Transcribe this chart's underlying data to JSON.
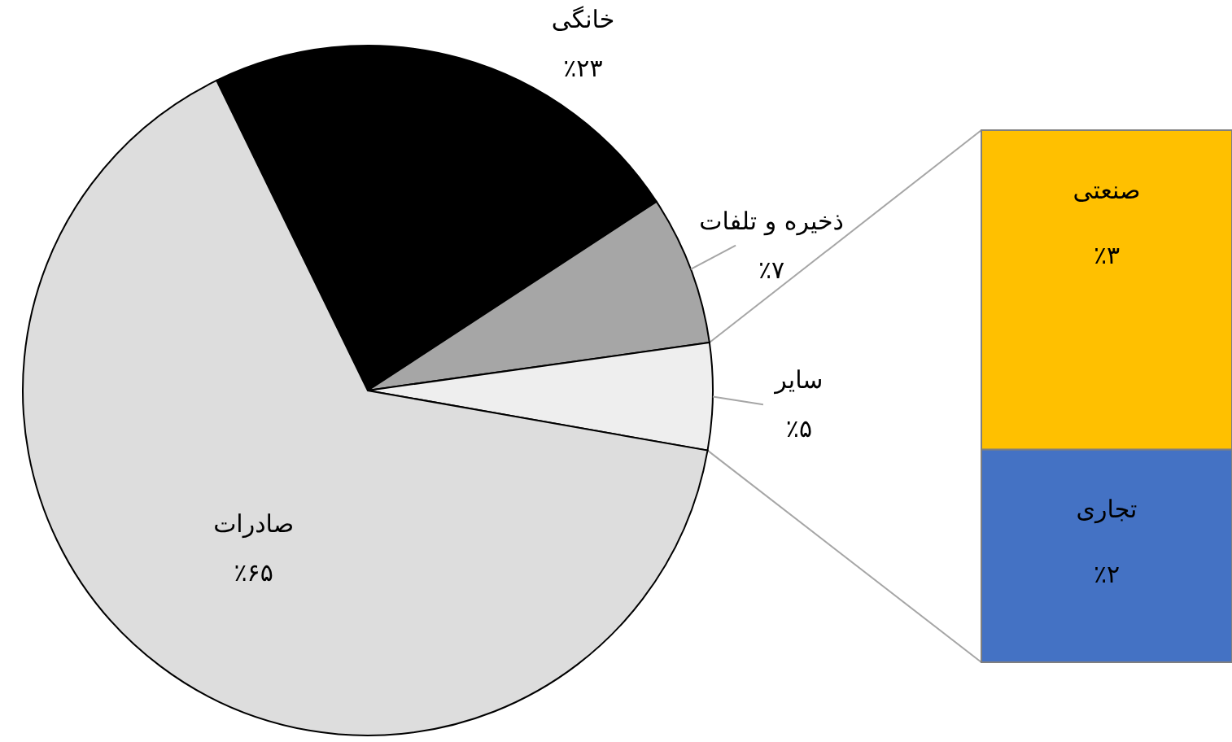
{
  "chart_data": [
    {
      "type": "pie",
      "categories": [
        "خانگی",
        "ذخیره و تلفات",
        "سایر",
        "صادرات"
      ],
      "values": [
        23,
        7,
        5,
        65
      ],
      "colors": [
        "#000000",
        "#a6a6a6",
        "#eeeeee",
        "#dddddd"
      ],
      "value_labels": [
        "٪۲۳",
        "٪۷",
        "٪۵",
        "٪۶۵"
      ]
    },
    {
      "type": "bar",
      "stacked": true,
      "categories": [
        null
      ],
      "series": [
        {
          "name": "تجاری",
          "color": "#4472c4",
          "values": [
            2
          ],
          "value_labels": [
            "٪۲"
          ]
        },
        {
          "name": "صنعتی",
          "color": "#ffc000",
          "values": [
            3
          ],
          "value_labels": [
            "٪۳"
          ]
        }
      ]
    }
  ]
}
